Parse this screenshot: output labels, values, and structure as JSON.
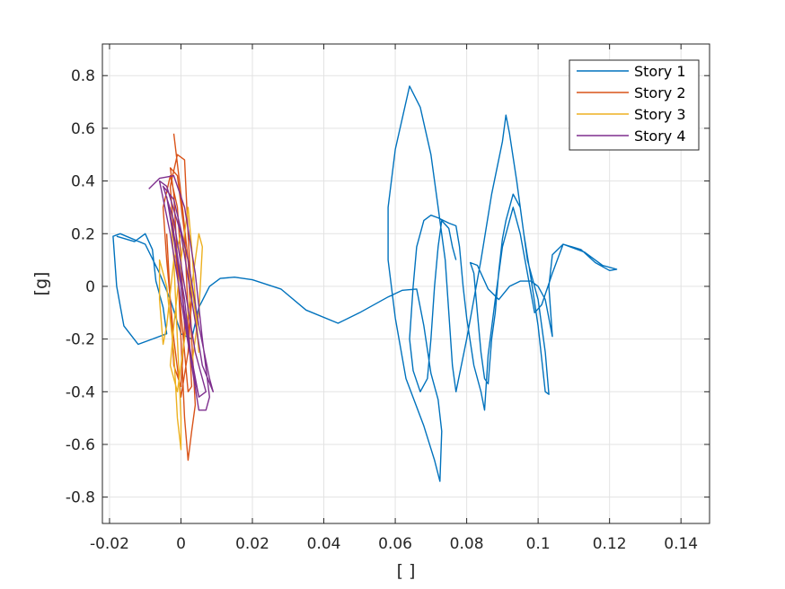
{
  "chart_data": {
    "type": "line",
    "title": "",
    "xlabel": "[ ]",
    "ylabel": "[g]",
    "xlim": [
      -0.022,
      0.148
    ],
    "ylim": [
      -0.9,
      0.92
    ],
    "x_ticks": [
      -0.02,
      0,
      0.02,
      0.04,
      0.06,
      0.08,
      0.1,
      0.12,
      0.14
    ],
    "x_tick_labels": [
      "-0.02",
      "0",
      "0.02",
      "0.04",
      "0.06",
      "0.08",
      "0.1",
      "0.12",
      "0.14"
    ],
    "y_ticks": [
      -0.8,
      -0.6,
      -0.4,
      -0.2,
      0,
      0.2,
      0.4,
      0.6,
      0.8
    ],
    "y_tick_labels": [
      "-0.8",
      "-0.6",
      "-0.4",
      "-0.2",
      "0",
      "0.2",
      "0.4",
      "0.6",
      "0.8"
    ],
    "grid": true,
    "legend_position": "top-right",
    "series": [
      {
        "name": "Story 1",
        "color": "#0072BD",
        "points": [
          [
            -0.018,
            0.19
          ],
          [
            -0.013,
            0.17
          ],
          [
            -0.01,
            0.2
          ],
          [
            -0.008,
            0.14
          ],
          [
            -0.007,
            0.02
          ],
          [
            -0.005,
            -0.08
          ],
          [
            -0.004,
            -0.18
          ],
          [
            -0.008,
            -0.2
          ],
          [
            -0.012,
            -0.22
          ],
          [
            -0.016,
            -0.15
          ],
          [
            -0.018,
            0.0
          ],
          [
            -0.019,
            0.19
          ],
          [
            -0.017,
            0.2
          ],
          [
            -0.01,
            0.16
          ],
          [
            -0.006,
            0.05
          ],
          [
            -0.003,
            -0.05
          ],
          [
            0.0,
            -0.18
          ],
          [
            0.003,
            -0.2
          ],
          [
            0.005,
            -0.08
          ],
          [
            0.008,
            0.0
          ],
          [
            0.011,
            0.03
          ],
          [
            0.015,
            0.035
          ],
          [
            0.02,
            0.025
          ],
          [
            0.028,
            -0.01
          ],
          [
            0.035,
            -0.09
          ],
          [
            0.044,
            -0.14
          ],
          [
            0.05,
            -0.1
          ],
          [
            0.058,
            -0.04
          ],
          [
            0.062,
            -0.015
          ],
          [
            0.066,
            -0.01
          ],
          [
            0.068,
            -0.15
          ],
          [
            0.07,
            -0.33
          ],
          [
            0.072,
            -0.43
          ],
          [
            0.073,
            -0.55
          ],
          [
            0.0725,
            -0.74
          ],
          [
            0.071,
            -0.66
          ],
          [
            0.068,
            -0.53
          ],
          [
            0.063,
            -0.35
          ],
          [
            0.06,
            -0.12
          ],
          [
            0.058,
            0.1
          ],
          [
            0.058,
            0.3
          ],
          [
            0.06,
            0.52
          ],
          [
            0.064,
            0.76
          ],
          [
            0.067,
            0.68
          ],
          [
            0.07,
            0.5
          ],
          [
            0.072,
            0.3
          ],
          [
            0.074,
            0.1
          ],
          [
            0.075,
            -0.1
          ],
          [
            0.076,
            -0.3
          ],
          [
            0.077,
            -0.4
          ],
          [
            0.08,
            -0.2
          ],
          [
            0.084,
            0.1
          ],
          [
            0.087,
            0.35
          ],
          [
            0.09,
            0.55
          ],
          [
            0.091,
            0.65
          ],
          [
            0.092,
            0.58
          ],
          [
            0.094,
            0.4
          ],
          [
            0.096,
            0.2
          ],
          [
            0.098,
            0.03
          ],
          [
            0.1,
            -0.15
          ],
          [
            0.102,
            -0.4
          ],
          [
            0.103,
            -0.41
          ],
          [
            0.102,
            -0.25
          ],
          [
            0.1,
            -0.05
          ],
          [
            0.097,
            0.1
          ],
          [
            0.095,
            0.3
          ],
          [
            0.093,
            0.35
          ],
          [
            0.091,
            0.25
          ],
          [
            0.09,
            0.18
          ],
          [
            0.089,
            0.06
          ],
          [
            0.088,
            -0.1
          ],
          [
            0.087,
            -0.2
          ],
          [
            0.086,
            -0.37
          ],
          [
            0.085,
            -0.35
          ],
          [
            0.084,
            -0.25
          ],
          [
            0.083,
            -0.1
          ],
          [
            0.082,
            0.05
          ],
          [
            0.081,
            0.09
          ],
          [
            0.083,
            0.08
          ],
          [
            0.086,
            -0.01
          ],
          [
            0.089,
            -0.05
          ],
          [
            0.092,
            0.0
          ],
          [
            0.095,
            0.02
          ],
          [
            0.098,
            0.02
          ],
          [
            0.1,
            0.0
          ],
          [
            0.102,
            -0.05
          ],
          [
            0.104,
            -0.19
          ],
          [
            0.103,
            0.0
          ],
          [
            0.104,
            0.12
          ],
          [
            0.107,
            0.16
          ],
          [
            0.112,
            0.14
          ],
          [
            0.116,
            0.09
          ],
          [
            0.12,
            0.06
          ],
          [
            0.122,
            0.065
          ],
          [
            0.118,
            0.08
          ],
          [
            0.113,
            0.13
          ],
          [
            0.107,
            0.16
          ],
          [
            0.104,
            0.05
          ],
          [
            0.101,
            -0.07
          ],
          [
            0.099,
            -0.1
          ],
          [
            0.097,
            0.05
          ],
          [
            0.095,
            0.2
          ],
          [
            0.093,
            0.3
          ],
          [
            0.09,
            0.15
          ],
          [
            0.088,
            -0.05
          ],
          [
            0.086,
            -0.26
          ],
          [
            0.085,
            -0.47
          ],
          [
            0.084,
            -0.4
          ],
          [
            0.082,
            -0.3
          ],
          [
            0.08,
            -0.12
          ],
          [
            0.079,
            0.0
          ],
          [
            0.078,
            0.15
          ],
          [
            0.077,
            0.23
          ],
          [
            0.075,
            0.24
          ],
          [
            0.072,
            0.26
          ],
          [
            0.07,
            0.27
          ],
          [
            0.068,
            0.25
          ],
          [
            0.066,
            0.15
          ],
          [
            0.065,
            0.0
          ],
          [
            0.064,
            -0.2
          ],
          [
            0.065,
            -0.32
          ],
          [
            0.067,
            -0.4
          ],
          [
            0.069,
            -0.35
          ],
          [
            0.07,
            -0.2
          ],
          [
            0.071,
            0.0
          ],
          [
            0.072,
            0.15
          ],
          [
            0.073,
            0.25
          ],
          [
            0.075,
            0.22
          ],
          [
            0.076,
            0.15
          ],
          [
            0.077,
            0.1
          ]
        ]
      },
      {
        "name": "Story 2",
        "color": "#D95319",
        "points": [
          [
            -0.002,
            0.58
          ],
          [
            0.0,
            0.35
          ],
          [
            0.002,
            0.1
          ],
          [
            0.003,
            -0.2
          ],
          [
            0.004,
            -0.45
          ],
          [
            0.003,
            -0.55
          ],
          [
            0.002,
            -0.66
          ],
          [
            0.001,
            -0.5
          ],
          [
            0.0,
            -0.2
          ],
          [
            -0.001,
            0.1
          ],
          [
            -0.002,
            0.35
          ],
          [
            -0.003,
            0.45
          ],
          [
            -0.001,
            0.42
          ],
          [
            0.001,
            0.2
          ],
          [
            0.002,
            -0.1
          ],
          [
            0.003,
            -0.38
          ],
          [
            0.002,
            -0.4
          ],
          [
            0.0,
            -0.1
          ],
          [
            -0.002,
            0.2
          ],
          [
            -0.003,
            0.38
          ],
          [
            -0.001,
            0.5
          ],
          [
            0.001,
            0.48
          ],
          [
            0.002,
            0.2
          ],
          [
            0.003,
            -0.05
          ],
          [
            0.002,
            -0.25
          ],
          [
            0.0,
            -0.42
          ],
          [
            -0.002,
            -0.2
          ],
          [
            -0.004,
            0.1
          ],
          [
            -0.005,
            0.3
          ],
          [
            -0.003,
            0.42
          ],
          [
            -0.001,
            0.3
          ],
          [
            0.0,
            0.1
          ],
          [
            0.001,
            -0.15
          ],
          [
            0.0,
            -0.38
          ],
          [
            -0.002,
            -0.3
          ],
          [
            -0.003,
            -0.05
          ],
          [
            -0.004,
            0.2
          ]
        ]
      },
      {
        "name": "Story 3",
        "color": "#EDB120",
        "points": [
          [
            -0.003,
            0.3
          ],
          [
            -0.002,
            0.1
          ],
          [
            -0.001,
            -0.2
          ],
          [
            0.0,
            -0.5
          ],
          [
            0.0,
            -0.62
          ],
          [
            -0.001,
            -0.5
          ],
          [
            -0.002,
            -0.25
          ],
          [
            -0.004,
            0.0
          ],
          [
            -0.006,
            0.1
          ],
          [
            -0.006,
            -0.05
          ],
          [
            -0.005,
            -0.22
          ],
          [
            -0.004,
            -0.15
          ],
          [
            -0.002,
            0.1
          ],
          [
            0.0,
            0.2
          ],
          [
            0.002,
            0.1
          ],
          [
            0.004,
            -0.1
          ],
          [
            0.005,
            -0.25
          ],
          [
            0.004,
            -0.05
          ],
          [
            0.003,
            0.15
          ],
          [
            0.002,
            0.3
          ],
          [
            0.0,
            0.1
          ],
          [
            -0.002,
            -0.15
          ],
          [
            -0.003,
            -0.3
          ],
          [
            -0.001,
            -0.4
          ],
          [
            0.001,
            -0.2
          ],
          [
            0.003,
            0.0
          ],
          [
            0.005,
            0.2
          ],
          [
            0.006,
            0.15
          ],
          [
            0.005,
            -0.1
          ],
          [
            0.003,
            -0.3
          ]
        ]
      },
      {
        "name": "Story 4",
        "color": "#7E2F8E",
        "points": [
          [
            -0.009,
            0.37
          ],
          [
            -0.006,
            0.41
          ],
          [
            -0.002,
            0.42
          ],
          [
            0.001,
            0.3
          ],
          [
            0.004,
            0.05
          ],
          [
            0.006,
            -0.2
          ],
          [
            0.008,
            -0.42
          ],
          [
            0.007,
            -0.47
          ],
          [
            0.005,
            -0.47
          ],
          [
            0.003,
            -0.3
          ],
          [
            0.0,
            -0.05
          ],
          [
            -0.003,
            0.2
          ],
          [
            -0.006,
            0.4
          ],
          [
            -0.004,
            0.38
          ],
          [
            0.0,
            0.2
          ],
          [
            0.003,
            -0.05
          ],
          [
            0.006,
            -0.3
          ],
          [
            0.009,
            -0.4
          ],
          [
            0.008,
            -0.35
          ],
          [
            0.005,
            -0.15
          ],
          [
            0.002,
            0.1
          ],
          [
            -0.002,
            0.33
          ],
          [
            -0.005,
            0.38
          ],
          [
            -0.002,
            0.25
          ],
          [
            0.001,
            0.0
          ],
          [
            0.004,
            -0.25
          ],
          [
            0.007,
            -0.4
          ],
          [
            0.005,
            -0.42
          ],
          [
            0.002,
            -0.2
          ],
          [
            -0.001,
            0.1
          ],
          [
            -0.004,
            0.34
          ],
          [
            -0.002,
            0.2
          ],
          [
            0.001,
            -0.05
          ],
          [
            0.003,
            -0.3
          ],
          [
            0.005,
            -0.42
          ]
        ]
      }
    ]
  }
}
